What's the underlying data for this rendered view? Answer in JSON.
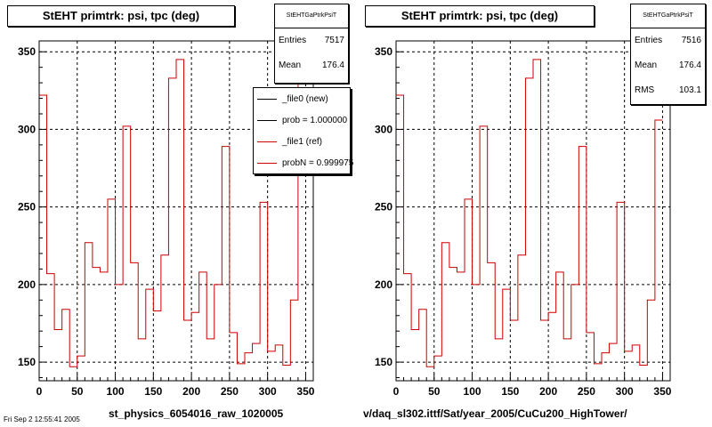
{
  "colors": {
    "histogram": "#cc0000",
    "new_line": "#000000",
    "ref_line": "#cc0000",
    "grid": "#000000"
  },
  "pads": [
    {
      "title": "StEHT primtrk: psi, tpc (deg)",
      "stats": {
        "name": "StEHTGaPtrkPsiT",
        "rows": [
          {
            "label": "Entries",
            "value": "7517"
          },
          {
            "label": "Mean",
            "value": "176.4"
          }
        ]
      },
      "legend": [
        {
          "text": "_file0 (new)",
          "color": "#000000"
        },
        {
          "text": "prob = 1.000000",
          "color": "#000000"
        },
        {
          "text": "_file1 (ref)",
          "color": "#cc0000"
        },
        {
          "text": "probN = 0.999975",
          "color": "#cc0000"
        }
      ],
      "xtitle": "st_physics_6054016_raw_1020005",
      "footer": "Fri Sep  2 12:55:41 2005"
    },
    {
      "title": "StEHT primtrk: psi, tpc (deg)",
      "stats": {
        "name": "StEHTGaPtrkPsiT",
        "rows": [
          {
            "label": "Entries",
            "value": "7516"
          },
          {
            "label": "Mean",
            "value": "176.4"
          },
          {
            "label": "RMS",
            "value": "103.1"
          }
        ]
      },
      "xtitle": "v/daq_sl302.ittf/Sat/year_2005/CuCu200_HighTower/"
    }
  ],
  "chart_data": [
    {
      "type": "histogram",
      "title": "StEHT primtrk: psi, tpc (deg)",
      "xlabel": "st_physics_6054016_raw_1020005",
      "ylabel": "",
      "xlim": [
        0,
        360
      ],
      "ylim": [
        138,
        357
      ],
      "xticks": [
        0,
        50,
        100,
        150,
        200,
        250,
        300,
        350
      ],
      "yticks": [
        150,
        200,
        250,
        300,
        350
      ],
      "grid": true,
      "bin_width": 10,
      "bin_edges_start": 0,
      "series": [
        {
          "values": [
            322,
            207,
            171,
            184,
            147,
            154,
            227,
            211,
            208,
            255,
            200,
            302,
            214,
            165,
            197,
            183,
            219,
            333,
            345,
            177,
            182,
            208,
            165,
            200,
            289,
            169,
            149,
            156,
            162,
            253,
            157,
            161,
            148,
            190,
            330
          ]
        }
      ]
    },
    {
      "type": "histogram",
      "title": "StEHT primtrk: psi, tpc (deg)",
      "xlabel": "v/daq_sl302.ittf/Sat/year_2005/CuCu200_HighTower/",
      "ylabel": "",
      "xlim": [
        0,
        360
      ],
      "ylim": [
        138,
        357
      ],
      "xticks": [
        0,
        50,
        100,
        150,
        200,
        250,
        300,
        350
      ],
      "yticks": [
        150,
        200,
        250,
        300,
        350
      ],
      "grid": true,
      "bin_width": 10,
      "bin_edges_start": 0,
      "series": [
        {
          "values": [
            322,
            207,
            171,
            184,
            147,
            154,
            227,
            211,
            208,
            255,
            200,
            302,
            214,
            165,
            197,
            177,
            219,
            333,
            345,
            177,
            182,
            208,
            165,
            200,
            289,
            169,
            149,
            156,
            162,
            253,
            157,
            161,
            148,
            190,
            306
          ]
        }
      ]
    }
  ]
}
